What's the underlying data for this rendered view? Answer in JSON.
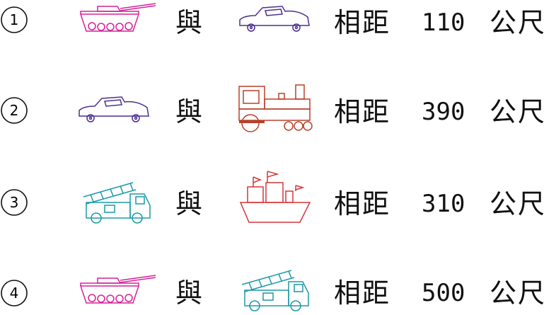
{
  "items": [
    {
      "number": "1",
      "first": "tank",
      "second": "car",
      "connector": "與",
      "relation": "相距",
      "distance": "110",
      "unit": "公尺"
    },
    {
      "number": "2",
      "first": "car",
      "second": "train",
      "connector": "與",
      "relation": "相距",
      "distance": "390",
      "unit": "公尺"
    },
    {
      "number": "3",
      "first": "fire-truck",
      "second": "boat",
      "connector": "與",
      "relation": "相距",
      "distance": "310",
      "unit": "公尺"
    },
    {
      "number": "4",
      "first": "tank",
      "second": "fire-truck",
      "connector": "與",
      "relation": "相距",
      "distance": "500",
      "unit": "公尺"
    }
  ],
  "colors": {
    "tank": "#d6219a",
    "car": "#4b2f8f",
    "train": "#b8412a",
    "fire-truck": "#1b9aa6",
    "boat": "#d4363a"
  }
}
